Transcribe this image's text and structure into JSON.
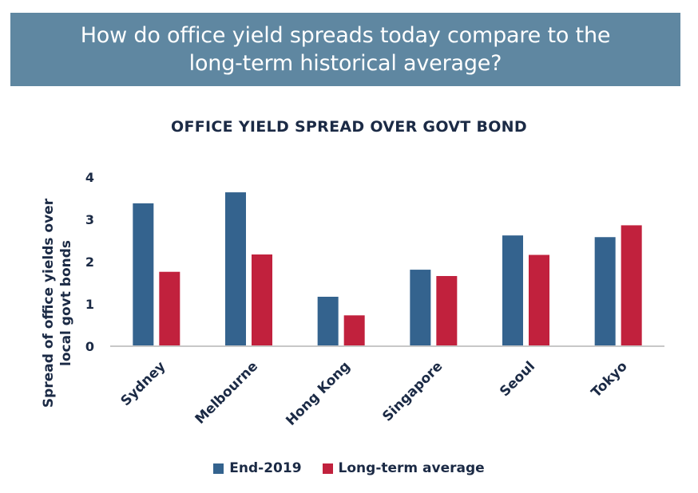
{
  "banner": {
    "title": "How do office yield spreads today compare to the long-term historical average?",
    "background": "#5f87a1"
  },
  "chart_data": {
    "type": "bar",
    "title": "OFFICE YIELD SPREAD OVER GOVT BOND",
    "ylabel": [
      "Spread of office yields over",
      "local govt bonds"
    ],
    "xlabel": "",
    "ylim": [
      0,
      4
    ],
    "yticks": [
      0,
      1,
      2,
      3,
      4
    ],
    "categories": [
      "Sydney",
      "Melbourne",
      "Hong Kong",
      "Singapore",
      "Seoul",
      "Tokyo"
    ],
    "series": [
      {
        "name": "End-2019",
        "color": "#34638e",
        "values": [
          3.38,
          3.64,
          1.17,
          1.81,
          2.62,
          2.58
        ]
      },
      {
        "name": "Long-term average",
        "color": "#c1213d",
        "values": [
          1.76,
          2.17,
          0.73,
          1.66,
          2.16,
          2.86
        ]
      }
    ],
    "grid": false,
    "legend_position": "bottom"
  }
}
